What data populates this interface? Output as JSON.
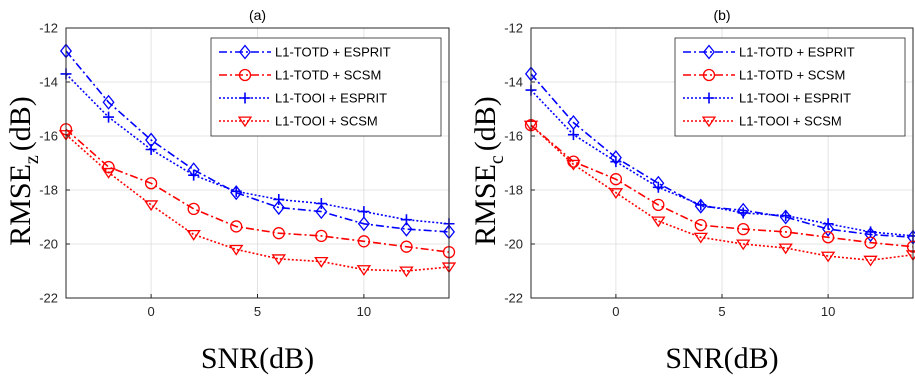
{
  "chart_data": [
    {
      "type": "line",
      "title": "(a)",
      "xlabel": "SNR(dB)",
      "ylabel": "RMSE",
      "ylabel_sub": "z",
      "xlim": [
        -4,
        14
      ],
      "ylim": [
        -22,
        -12
      ],
      "xticks": [
        0,
        5,
        10
      ],
      "yticks": [
        -12,
        -14,
        -16,
        -18,
        -20,
        -22
      ],
      "grid": true,
      "legend_position": "top-right",
      "x": [
        -4,
        -2,
        0,
        2,
        4,
        6,
        8,
        10,
        12,
        14
      ],
      "series": [
        {
          "name": "L1-TOTD + ESPRIT",
          "color": "#0000ff",
          "dash": "dashdot",
          "marker": "diamond",
          "values": [
            -12.85,
            -14.75,
            -16.15,
            -17.25,
            -18.1,
            -18.65,
            -18.8,
            -19.25,
            -19.45,
            -19.55
          ]
        },
        {
          "name": "L1-TOTD + SCSM",
          "color": "#ff0000",
          "dash": "dashdot",
          "marker": "circle",
          "values": [
            -15.75,
            -17.15,
            -17.75,
            -18.7,
            -19.35,
            -19.6,
            -19.7,
            -19.9,
            -20.1,
            -20.3
          ]
        },
        {
          "name": "L1-TOOI + ESPRIT",
          "color": "#0000ff",
          "dash": "dotted",
          "marker": "plus",
          "values": [
            -13.7,
            -15.3,
            -16.5,
            -17.45,
            -18.05,
            -18.35,
            -18.5,
            -18.8,
            -19.1,
            -19.25
          ]
        },
        {
          "name": "L1-TOOI + SCSM",
          "color": "#ff0000",
          "dash": "dotted",
          "marker": "triangle-down",
          "values": [
            -15.95,
            -17.35,
            -18.55,
            -19.65,
            -20.2,
            -20.55,
            -20.65,
            -20.95,
            -21.0,
            -20.85
          ]
        }
      ]
    },
    {
      "type": "line",
      "title": "(b)",
      "xlabel": "SNR(dB)",
      "ylabel": "RMSE",
      "ylabel_sub": "c",
      "xlim": [
        -4,
        14
      ],
      "ylim": [
        -22,
        -12
      ],
      "xticks": [
        0,
        5,
        10
      ],
      "yticks": [
        -12,
        -14,
        -16,
        -18,
        -20,
        -22
      ],
      "grid": true,
      "legend_position": "top-right",
      "x": [
        -4,
        -2,
        0,
        2,
        4,
        6,
        8,
        10,
        12,
        14
      ],
      "series": [
        {
          "name": "L1-TOTD + ESPRIT",
          "color": "#0000ff",
          "dash": "dashdot",
          "marker": "diamond",
          "values": [
            -13.7,
            -15.5,
            -16.8,
            -17.75,
            -18.6,
            -18.75,
            -19.0,
            -19.45,
            -19.65,
            -19.75
          ]
        },
        {
          "name": "L1-TOTD + SCSM",
          "color": "#ff0000",
          "dash": "dashdot",
          "marker": "circle",
          "values": [
            -15.6,
            -16.95,
            -17.6,
            -18.55,
            -19.3,
            -19.45,
            -19.55,
            -19.75,
            -19.95,
            -20.1
          ]
        },
        {
          "name": "L1-TOOI + ESPRIT",
          "color": "#0000ff",
          "dash": "dotted",
          "marker": "plus",
          "values": [
            -14.3,
            -15.95,
            -16.95,
            -17.9,
            -18.55,
            -18.85,
            -18.95,
            -19.25,
            -19.55,
            -19.7
          ]
        },
        {
          "name": "L1-TOOI + SCSM",
          "color": "#ff0000",
          "dash": "dotted",
          "marker": "triangle-down",
          "values": [
            -15.6,
            -17.05,
            -18.1,
            -19.15,
            -19.75,
            -20.0,
            -20.15,
            -20.45,
            -20.6,
            -20.4
          ]
        }
      ]
    }
  ]
}
